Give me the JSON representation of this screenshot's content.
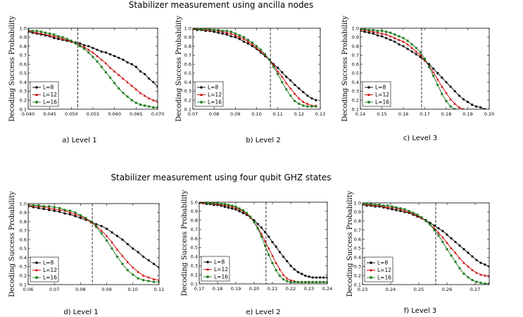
{
  "section_titles": [
    "Stabilizer measurement using ancilla nodes",
    "Stabilizer measurement using four qubit GHZ states"
  ],
  "ylabel": "Decoding Success Probability",
  "series_names": [
    "L=8",
    "L=12",
    "L=16"
  ],
  "colors": {
    "L=8": "#000000",
    "L=12": "#cc0000",
    "L=16": "#1a7a1a",
    "threshold": "#000000"
  },
  "chart_data": [
    {
      "type": "line",
      "caption": "a) Level 1",
      "xlim": [
        0.04,
        0.07
      ],
      "ylim": [
        0.1,
        1.0
      ],
      "xticks": [
        "0.040",
        "0.045",
        "0.050",
        "0.055",
        "0.060",
        "0.065",
        "0.070"
      ],
      "yticks": [
        "0.1",
        "0.2",
        "0.3",
        "0.4",
        "0.5",
        "0.6",
        "0.7",
        "0.8",
        "0.9",
        "1.0"
      ],
      "threshold": 0.0515,
      "x0": 0.04,
      "dx": 0.001,
      "series": [
        {
          "name": "L=8",
          "values": [
            0.96,
            0.95,
            0.94,
            0.93,
            0.92,
            0.91,
            0.89,
            0.88,
            0.87,
            0.86,
            0.85,
            0.84,
            0.83,
            0.81,
            0.8,
            0.78,
            0.76,
            0.74,
            0.73,
            0.71,
            0.69,
            0.67,
            0.65,
            0.62,
            0.6,
            0.57,
            0.52,
            0.49,
            0.44,
            0.4,
            0.35
          ]
        },
        {
          "name": "L=12",
          "values": [
            0.97,
            0.96,
            0.95,
            0.94,
            0.93,
            0.92,
            0.91,
            0.9,
            0.88,
            0.87,
            0.85,
            0.83,
            0.81,
            0.79,
            0.76,
            0.73,
            0.69,
            0.65,
            0.61,
            0.56,
            0.52,
            0.48,
            0.44,
            0.4,
            0.36,
            0.32,
            0.28,
            0.25,
            0.22,
            0.2,
            0.18
          ]
        },
        {
          "name": "L=16",
          "values": [
            0.98,
            0.97,
            0.97,
            0.96,
            0.95,
            0.94,
            0.93,
            0.91,
            0.9,
            0.88,
            0.86,
            0.83,
            0.8,
            0.77,
            0.73,
            0.68,
            0.63,
            0.57,
            0.51,
            0.45,
            0.39,
            0.33,
            0.28,
            0.24,
            0.2,
            0.17,
            0.15,
            0.14,
            0.13,
            0.12,
            0.12
          ]
        }
      ]
    },
    {
      "type": "line",
      "caption": "b) Level 2",
      "xlim": [
        0.07,
        0.13
      ],
      "ylim": [
        0.1,
        1.0
      ],
      "xticks": [
        "0.07",
        "0.08",
        "0.09",
        "0.10",
        "0.11",
        "0.12",
        "0.13"
      ],
      "yticks": [
        "0.1",
        "0.2",
        "0.3",
        "0.4",
        "0.5",
        "0.6",
        "0.7",
        "0.8",
        "0.9",
        "1.0"
      ],
      "threshold": 0.1065,
      "x0": 0.07,
      "dx": 0.002,
      "series": [
        {
          "name": "L=8",
          "values": [
            0.99,
            0.98,
            0.98,
            0.97,
            0.97,
            0.96,
            0.95,
            0.94,
            0.93,
            0.91,
            0.9,
            0.88,
            0.85,
            0.83,
            0.8,
            0.77,
            0.73,
            0.69,
            0.65,
            0.6,
            0.56,
            0.51,
            0.46,
            0.42,
            0.37,
            0.33,
            0.29,
            0.25,
            0.22,
            0.2
          ]
        },
        {
          "name": "L=12",
          "values": [
            0.99,
            0.99,
            0.99,
            0.98,
            0.98,
            0.98,
            0.97,
            0.96,
            0.95,
            0.94,
            0.92,
            0.9,
            0.88,
            0.85,
            0.82,
            0.78,
            0.74,
            0.7,
            0.65,
            0.59,
            0.52,
            0.46,
            0.39,
            0.33,
            0.27,
            0.22,
            0.18,
            0.16,
            0.14,
            0.14
          ]
        },
        {
          "name": "L=16",
          "values": [
            1.0,
            0.99,
            0.99,
            0.99,
            0.99,
            0.98,
            0.98,
            0.97,
            0.97,
            0.96,
            0.94,
            0.92,
            0.9,
            0.87,
            0.84,
            0.8,
            0.76,
            0.71,
            0.65,
            0.57,
            0.49,
            0.4,
            0.32,
            0.25,
            0.19,
            0.16,
            0.14,
            0.13,
            0.13,
            0.13
          ]
        }
      ]
    },
    {
      "type": "line",
      "caption": "c) Level 3",
      "xlim": [
        0.14,
        0.2
      ],
      "ylim": [
        0.1,
        1.0
      ],
      "xticks": [
        "0.14",
        "0.15",
        "0.16",
        "0.17",
        "0.18",
        "0.19",
        "0.20"
      ],
      "yticks": [
        "0.1",
        "0.2",
        "0.3",
        "0.4",
        "0.5",
        "0.6",
        "0.7",
        "0.8",
        "0.9",
        "1.0"
      ],
      "threshold": 0.1685,
      "x0": 0.14,
      "dx": 0.002,
      "series": [
        {
          "name": "L=8",
          "values": [
            0.97,
            0.96,
            0.95,
            0.94,
            0.92,
            0.91,
            0.89,
            0.87,
            0.85,
            0.82,
            0.8,
            0.77,
            0.74,
            0.71,
            0.68,
            0.64,
            0.6,
            0.55,
            0.5,
            0.45,
            0.4,
            0.35,
            0.3,
            0.25,
            0.21,
            0.18,
            0.15,
            0.13,
            0.12,
            0.1
          ]
        },
        {
          "name": "L=12",
          "values": [
            0.98,
            0.98,
            0.97,
            0.96,
            0.95,
            0.94,
            0.93,
            0.91,
            0.89,
            0.87,
            0.85,
            0.82,
            0.78,
            0.74,
            0.7,
            0.64,
            0.58,
            0.51,
            0.43,
            0.35,
            0.28,
            0.21,
            0.16,
            0.12,
            0.1,
            0.09,
            0.08,
            0.08,
            0.08,
            0.08
          ]
        },
        {
          "name": "L=16",
          "values": [
            0.99,
            0.99,
            0.98,
            0.98,
            0.97,
            0.97,
            0.96,
            0.95,
            0.93,
            0.91,
            0.89,
            0.86,
            0.82,
            0.78,
            0.73,
            0.66,
            0.57,
            0.47,
            0.37,
            0.27,
            0.19,
            0.13,
            0.1,
            0.08,
            0.08,
            0.07,
            0.07,
            0.07,
            0.07,
            0.07
          ]
        }
      ]
    },
    {
      "type": "line",
      "caption": "d) Level 1",
      "xlim": [
        0.06,
        0.11
      ],
      "ylim": [
        0.1,
        1.0
      ],
      "xticks": [
        "0.06",
        "0.07",
        "0.08",
        "0.09",
        "0.10",
        "0.11"
      ],
      "yticks": [
        "0.1",
        "0.2",
        "0.3",
        "0.4",
        "0.5",
        "0.6",
        "0.7",
        "0.8",
        "0.9",
        "1.0"
      ],
      "threshold": 0.0845,
      "x0": 0.06,
      "dx": 0.002,
      "series": [
        {
          "name": "L=8",
          "values": [
            0.97,
            0.96,
            0.95,
            0.94,
            0.93,
            0.92,
            0.91,
            0.89,
            0.88,
            0.86,
            0.84,
            0.82,
            0.8,
            0.77,
            0.75,
            0.72,
            0.68,
            0.64,
            0.6,
            0.55,
            0.5,
            0.46,
            0.41,
            0.37,
            0.33,
            0.29
          ]
        },
        {
          "name": "L=12",
          "values": [
            0.98,
            0.97,
            0.97,
            0.96,
            0.95,
            0.94,
            0.93,
            0.92,
            0.9,
            0.88,
            0.86,
            0.83,
            0.79,
            0.75,
            0.7,
            0.64,
            0.57,
            0.49,
            0.42,
            0.35,
            0.29,
            0.24,
            0.2,
            0.18,
            0.16,
            0.15
          ]
        },
        {
          "name": "L=16",
          "values": [
            0.99,
            0.98,
            0.98,
            0.97,
            0.97,
            0.96,
            0.95,
            0.93,
            0.92,
            0.9,
            0.87,
            0.84,
            0.8,
            0.74,
            0.67,
            0.59,
            0.5,
            0.41,
            0.33,
            0.26,
            0.21,
            0.17,
            0.15,
            0.14,
            0.13,
            0.13
          ]
        }
      ]
    },
    {
      "type": "line",
      "caption": "e) Level 2",
      "xlim": [
        0.17,
        0.24
      ],
      "ylim": [
        0.1,
        1.0
      ],
      "xticks": [
        "0.17",
        "0.18",
        "0.19",
        "0.20",
        "0.21",
        "0.22",
        "0.23",
        "0.24"
      ],
      "yticks": [
        "0.1",
        "0.2",
        "0.3",
        "0.4",
        "0.5",
        "0.6",
        "0.7",
        "0.8",
        "0.9",
        "1.0"
      ],
      "threshold": 0.2065,
      "x0": 0.17,
      "dx": 0.002,
      "series": [
        {
          "name": "L=8",
          "values": [
            0.99,
            0.99,
            0.98,
            0.98,
            0.97,
            0.97,
            0.96,
            0.95,
            0.94,
            0.93,
            0.92,
            0.9,
            0.88,
            0.86,
            0.83,
            0.8,
            0.76,
            0.72,
            0.67,
            0.62,
            0.56,
            0.51,
            0.45,
            0.4,
            0.35,
            0.3,
            0.26,
            0.23,
            0.21,
            0.19,
            0.18,
            0.17,
            0.17,
            0.17,
            0.17,
            0.17
          ]
        },
        {
          "name": "L=12",
          "values": [
            1.0,
            0.99,
            0.99,
            0.99,
            0.98,
            0.98,
            0.97,
            0.97,
            0.96,
            0.95,
            0.94,
            0.92,
            0.9,
            0.87,
            0.83,
            0.78,
            0.72,
            0.65,
            0.57,
            0.49,
            0.41,
            0.33,
            0.26,
            0.2,
            0.16,
            0.14,
            0.13,
            0.12,
            0.12,
            0.12,
            0.12,
            0.12,
            0.12,
            0.12,
            0.12,
            0.12
          ]
        },
        {
          "name": "L=16",
          "values": [
            1.0,
            1.0,
            0.99,
            0.99,
            0.99,
            0.99,
            0.98,
            0.98,
            0.97,
            0.96,
            0.95,
            0.93,
            0.91,
            0.88,
            0.84,
            0.78,
            0.71,
            0.62,
            0.52,
            0.42,
            0.33,
            0.25,
            0.19,
            0.15,
            0.13,
            0.12,
            0.12,
            0.12,
            0.12,
            0.12,
            0.12,
            0.12,
            0.12,
            0.12,
            0.12,
            0.12
          ]
        }
      ]
    },
    {
      "type": "line",
      "caption": "f) Level 3",
      "xlim": [
        0.23,
        0.275
      ],
      "ylim": [
        0.1,
        1.0
      ],
      "xticks": [
        "0.23",
        "0.24",
        "0.25",
        "0.26",
        "0.27"
      ],
      "yticks": [
        "0.1",
        "0.2",
        "0.3",
        "0.4",
        "0.5",
        "0.6",
        "0.7",
        "0.8",
        "0.9",
        "1.0"
      ],
      "threshold": 0.256,
      "x0": 0.23,
      "dx": 0.0015,
      "series": [
        {
          "name": "L=8",
          "values": [
            0.98,
            0.97,
            0.97,
            0.96,
            0.96,
            0.95,
            0.94,
            0.93,
            0.92,
            0.91,
            0.9,
            0.89,
            0.87,
            0.85,
            0.83,
            0.81,
            0.78,
            0.75,
            0.72,
            0.69,
            0.65,
            0.61,
            0.57,
            0.53,
            0.49,
            0.45,
            0.41,
            0.37,
            0.34,
            0.32,
            0.3
          ]
        },
        {
          "name": "L=12",
          "values": [
            0.99,
            0.98,
            0.98,
            0.97,
            0.97,
            0.96,
            0.95,
            0.95,
            0.94,
            0.93,
            0.91,
            0.9,
            0.88,
            0.86,
            0.83,
            0.8,
            0.76,
            0.72,
            0.67,
            0.62,
            0.56,
            0.5,
            0.45,
            0.39,
            0.34,
            0.3,
            0.26,
            0.23,
            0.21,
            0.2,
            0.19
          ]
        },
        {
          "name": "L=16",
          "values": [
            0.99,
            0.99,
            0.99,
            0.98,
            0.98,
            0.97,
            0.97,
            0.96,
            0.95,
            0.94,
            0.93,
            0.91,
            0.89,
            0.87,
            0.84,
            0.8,
            0.76,
            0.7,
            0.64,
            0.57,
            0.49,
            0.42,
            0.35,
            0.28,
            0.22,
            0.18,
            0.15,
            0.13,
            0.12,
            0.11,
            0.11
          ]
        }
      ]
    }
  ]
}
